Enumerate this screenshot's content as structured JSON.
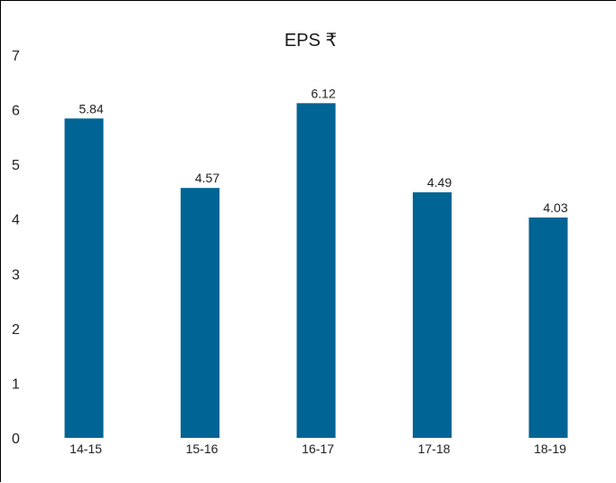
{
  "chart_data": {
    "type": "bar",
    "title": "EPS ₹",
    "xlabel": "",
    "ylabel": "",
    "categories": [
      "14-15",
      "15-16",
      "16-17",
      "17-18",
      "18-19"
    ],
    "values": [
      5.84,
      4.57,
      6.12,
      4.49,
      4.03
    ],
    "value_labels": [
      "5.84",
      "4.57",
      "6.12",
      "4.49",
      "4.03"
    ],
    "ylim": [
      0,
      7
    ],
    "yticks": [
      "0",
      "1",
      "2",
      "3",
      "4",
      "5",
      "6",
      "7"
    ],
    "grid": false,
    "legend": "none",
    "bar_color": "#006494"
  }
}
